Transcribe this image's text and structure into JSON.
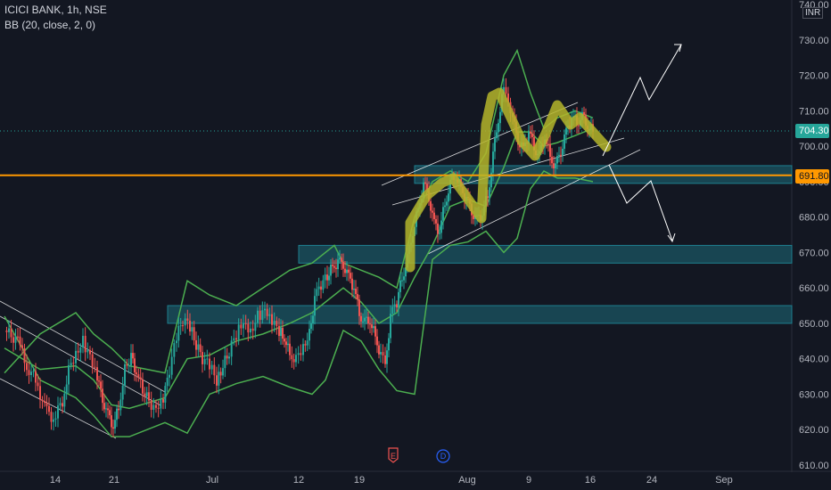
{
  "header": {
    "symbol_line": "ICICI BANK, 1h, NSE",
    "indicator": "BB (20, close, 2, 0)",
    "currency": "INR"
  },
  "chart_data": {
    "type": "line",
    "symbol": "ICICI BANK",
    "interval": "1h",
    "exchange": "NSE",
    "ylim": [
      608,
      742
    ],
    "y_ticks": [
      "740.00",
      "730.00",
      "720.00",
      "710.00",
      "700.00",
      "690.00",
      "680.00",
      "670.00",
      "660.00",
      "650.00",
      "640.00",
      "630.00",
      "620.00",
      "610.00"
    ],
    "x_ticks": [
      "14",
      "21",
      "Jul",
      "12",
      "19",
      "Aug",
      "9",
      "16",
      "24",
      "Sep"
    ],
    "last_price": "704.30",
    "horizontal_level": "691.80",
    "colors": {
      "background": "#131722",
      "up": "#26a69a",
      "down": "#ef5350",
      "bollinger": "#4caf50",
      "level_line": "#ff9800",
      "zone": "#1e7f8f",
      "highlight": "#b5b52a",
      "projection": "#ffffff"
    },
    "price_path": [
      [
        0,
        648
      ],
      [
        15,
        645
      ],
      [
        25,
        638
      ],
      [
        35,
        634
      ],
      [
        45,
        626
      ],
      [
        55,
        623
      ],
      [
        65,
        628
      ],
      [
        72,
        637
      ],
      [
        80,
        642
      ],
      [
        88,
        645
      ],
      [
        96,
        640
      ],
      [
        104,
        634
      ],
      [
        110,
        629
      ],
      [
        116,
        624
      ],
      [
        122,
        621
      ],
      [
        128,
        626
      ],
      [
        135,
        637
      ],
      [
        142,
        641
      ],
      [
        148,
        636
      ],
      [
        155,
        631
      ],
      [
        162,
        628
      ],
      [
        170,
        625
      ],
      [
        178,
        628
      ],
      [
        185,
        637
      ],
      [
        193,
        646
      ],
      [
        200,
        651
      ],
      [
        208,
        649
      ],
      [
        215,
        644
      ],
      [
        222,
        640
      ],
      [
        230,
        638
      ],
      [
        238,
        634
      ],
      [
        245,
        638
      ],
      [
        252,
        642
      ],
      [
        260,
        647
      ],
      [
        268,
        651
      ],
      [
        276,
        648
      ],
      [
        284,
        652
      ],
      [
        292,
        653
      ],
      [
        300,
        650
      ],
      [
        308,
        648
      ],
      [
        314,
        646
      ],
      [
        320,
        641
      ],
      [
        327,
        640
      ],
      [
        335,
        644
      ],
      [
        342,
        647
      ],
      [
        348,
        657
      ],
      [
        355,
        661
      ],
      [
        362,
        663
      ],
      [
        368,
        666
      ],
      [
        374,
        667
      ],
      [
        380,
        667
      ],
      [
        386,
        663
      ],
      [
        392,
        660
      ],
      [
        398,
        653
      ],
      [
        404,
        650
      ],
      [
        410,
        651
      ],
      [
        416,
        646
      ],
      [
        422,
        641
      ],
      [
        427,
        638
      ],
      [
        433,
        652
      ],
      [
        440,
        656
      ],
      [
        446,
        663
      ],
      [
        452,
        668
      ],
      [
        458,
        676
      ],
      [
        464,
        682
      ],
      [
        470,
        689
      ],
      [
        476,
        686
      ],
      [
        482,
        678
      ],
      [
        488,
        676
      ],
      [
        494,
        684
      ],
      [
        500,
        689
      ],
      [
        506,
        692
      ],
      [
        512,
        688
      ],
      [
        518,
        685
      ],
      [
        524,
        682
      ],
      [
        530,
        679
      ],
      [
        536,
        681
      ],
      [
        542,
        686
      ],
      [
        548,
        697
      ],
      [
        554,
        708
      ],
      [
        560,
        716
      ],
      [
        565,
        714
      ],
      [
        570,
        707
      ],
      [
        576,
        702
      ],
      [
        582,
        699
      ],
      [
        588,
        704
      ],
      [
        594,
        700
      ],
      [
        600,
        697
      ],
      [
        606,
        703
      ],
      [
        612,
        697
      ],
      [
        618,
        694
      ],
      [
        624,
        699
      ],
      [
        630,
        704
      ],
      [
        636,
        708
      ],
      [
        642,
        707
      ],
      [
        648,
        708
      ],
      [
        654,
        706
      ],
      [
        660,
        704
      ]
    ],
    "bollinger_bands": {
      "upper": [
        [
          0,
          636
        ],
        [
          40,
          647
        ],
        [
          80,
          653
        ],
        [
          100,
          647
        ],
        [
          120,
          643
        ],
        [
          140,
          638
        ],
        [
          180,
          636
        ],
        [
          205,
          662
        ],
        [
          230,
          658
        ],
        [
          260,
          655
        ],
        [
          290,
          660
        ],
        [
          320,
          665
        ],
        [
          345,
          667
        ],
        [
          370,
          672
        ],
        [
          380,
          667
        ],
        [
          400,
          665
        ],
        [
          420,
          663
        ],
        [
          440,
          660
        ],
        [
          460,
          680
        ],
        [
          480,
          690
        ],
        [
          500,
          693
        ],
        [
          520,
          690
        ],
        [
          540,
          698
        ],
        [
          560,
          720
        ],
        [
          575,
          727
        ],
        [
          590,
          715
        ],
        [
          605,
          705
        ],
        [
          620,
          708
        ],
        [
          640,
          710
        ],
        [
          660,
          708
        ]
      ],
      "middle": [
        [
          0,
          643
        ],
        [
          40,
          637
        ],
        [
          80,
          638
        ],
        [
          100,
          634
        ],
        [
          120,
          627
        ],
        [
          140,
          626
        ],
        [
          180,
          629
        ],
        [
          205,
          640
        ],
        [
          230,
          641
        ],
        [
          260,
          645
        ],
        [
          290,
          647
        ],
        [
          320,
          650
        ],
        [
          345,
          653
        ],
        [
          370,
          658
        ],
        [
          380,
          660
        ],
        [
          400,
          656
        ],
        [
          420,
          650
        ],
        [
          440,
          653
        ],
        [
          460,
          663
        ],
        [
          480,
          672
        ],
        [
          500,
          683
        ],
        [
          520,
          685
        ],
        [
          540,
          683
        ],
        [
          560,
          694
        ],
        [
          575,
          704
        ],
        [
          590,
          704
        ],
        [
          605,
          700
        ],
        [
          620,
          701
        ],
        [
          640,
          703
        ],
        [
          660,
          705
        ]
      ],
      "lower": [
        [
          0,
          652
        ],
        [
          40,
          634
        ],
        [
          80,
          629
        ],
        [
          100,
          624
        ],
        [
          120,
          618
        ],
        [
          140,
          618
        ],
        [
          180,
          622
        ],
        [
          205,
          619
        ],
        [
          230,
          630
        ],
        [
          260,
          633
        ],
        [
          290,
          635
        ],
        [
          320,
          632
        ],
        [
          345,
          630
        ],
        [
          360,
          634
        ],
        [
          380,
          648
        ],
        [
          400,
          645
        ],
        [
          420,
          637
        ],
        [
          440,
          631
        ],
        [
          460,
          630
        ],
        [
          480,
          668
        ],
        [
          500,
          672
        ],
        [
          520,
          673
        ],
        [
          540,
          676
        ],
        [
          560,
          670
        ],
        [
          575,
          674
        ],
        [
          590,
          688
        ],
        [
          605,
          693
        ],
        [
          620,
          691
        ],
        [
          640,
          691
        ],
        [
          660,
          690
        ]
      ]
    },
    "zones": [
      [
        689.5,
        694.5
      ],
      [
        667,
        672
      ],
      [
        650,
        655
      ]
    ],
    "zone_starts_x_px_note": ""
  }
}
